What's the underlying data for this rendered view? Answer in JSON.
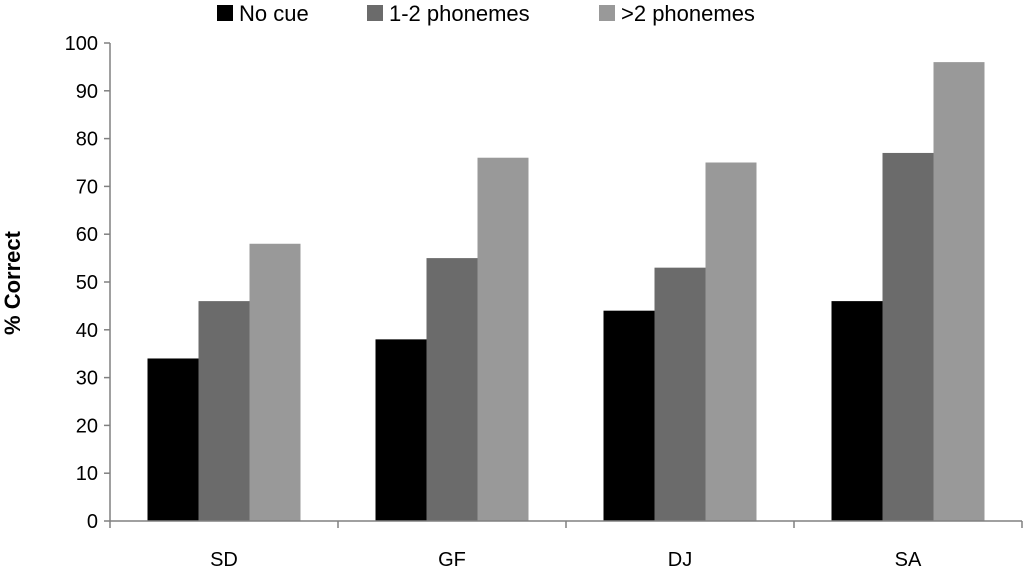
{
  "chart_data": {
    "type": "bar",
    "title": "",
    "xlabel": "",
    "ylabel": "% Correct",
    "ylim": [
      0,
      100
    ],
    "ytick_step": 10,
    "grid": false,
    "legend_position": "top",
    "categories": [
      "SD",
      "GF",
      "DJ",
      "SA"
    ],
    "yticks": [
      "0",
      "10",
      "20",
      "30",
      "40",
      "50",
      "60",
      "70",
      "80",
      "90",
      "100"
    ],
    "series": [
      {
        "name": "No cue",
        "color": "#000000",
        "values": [
          34,
          38,
          44,
          46
        ]
      },
      {
        "name": "1-2 phonemes",
        "color": "#6b6b6b",
        "values": [
          46,
          55,
          53,
          77
        ]
      },
      {
        "name": ">2 phonemes",
        "color": "#999999",
        "values": [
          58,
          76,
          75,
          96
        ]
      }
    ]
  }
}
